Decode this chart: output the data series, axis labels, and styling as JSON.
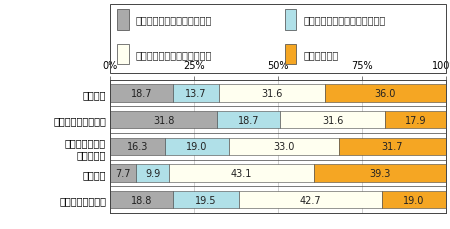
{
  "categories": [
    "分散投資",
    "ドル・コスト平均法",
    "長期運用による\nリスク分散",
    "穏み立て",
    "海外資産との分散"
  ],
  "series": [
    {
      "label": "知らない・聴いたことがない",
      "color": "#aaaaaa",
      "values": [
        18.7,
        31.8,
        16.3,
        7.7,
        18.8
      ]
    },
    {
      "label": "聴いたことがあるがわからない",
      "color": "#b0e0e8",
      "values": [
        13.7,
        18.7,
        19.0,
        9.9,
        19.5
      ]
    },
    {
      "label": "知っているが実行していない",
      "color": "#fffff0",
      "values": [
        31.6,
        31.6,
        33.0,
        43.1,
        42.7
      ]
    },
    {
      "label": "実行している",
      "color": "#f5a623",
      "values": [
        36.0,
        17.9,
        31.7,
        39.3,
        19.0
      ]
    }
  ],
  "xlim": [
    0,
    100
  ],
  "xticks": [
    0,
    25,
    50,
    75,
    100
  ],
  "xticklabels": [
    "0%",
    "25%",
    "50%",
    "75%",
    "100%"
  ],
  "bar_height": 0.65,
  "background_color": "#ffffff",
  "border_color": "#444444",
  "grid_color": "#bbbbbb",
  "fontsize_label": 7.0,
  "fontsize_tick": 7.0,
  "fontsize_bar": 7.0,
  "fontsize_legend": 7.0
}
